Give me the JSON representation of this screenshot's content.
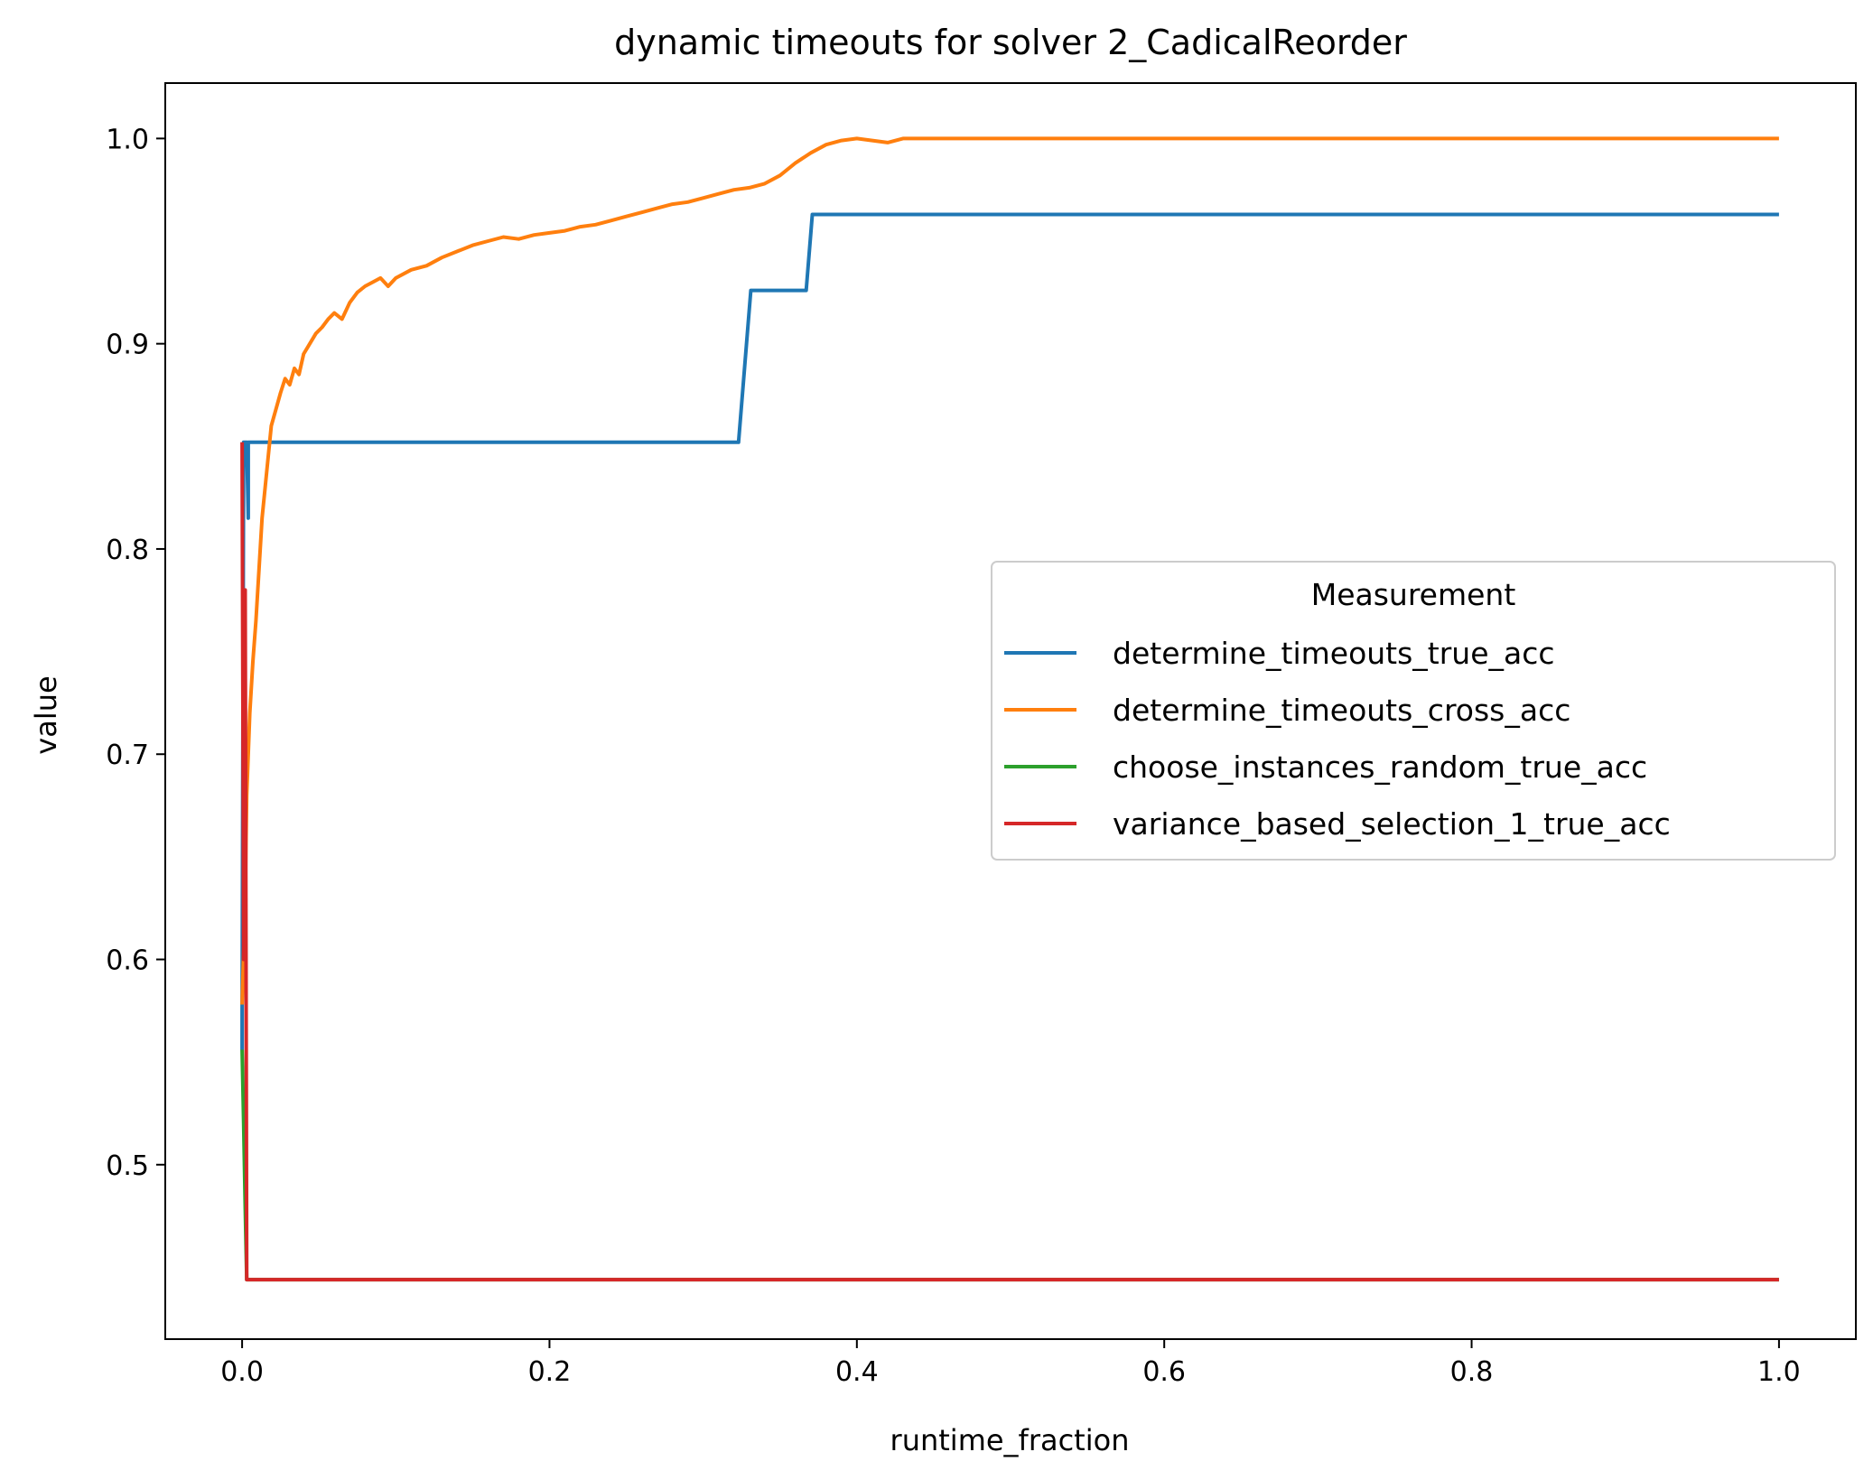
{
  "chart_data": {
    "type": "line",
    "title": "dynamic timeouts for solver 2_CadicalReorder",
    "xlabel": "runtime_fraction",
    "ylabel": "value",
    "xlim": [
      -0.05,
      1.05
    ],
    "ylim": [
      0.415,
      1.027
    ],
    "xticks": [
      0.0,
      0.2,
      0.4,
      0.6,
      0.8,
      1.0
    ],
    "xtick_labels": [
      "0.0",
      "0.2",
      "0.4",
      "0.6",
      "0.8",
      "1.0"
    ],
    "yticks": [
      0.5,
      0.6,
      0.7,
      0.8,
      0.9,
      1.0
    ],
    "ytick_labels": [
      "0.5",
      "0.6",
      "0.7",
      "0.8",
      "0.9",
      "1.0"
    ],
    "legend": {
      "title": "Measurement",
      "position": "center-right"
    },
    "series": [
      {
        "name": "determine_timeouts_true_acc",
        "color": "#1f77b4",
        "points": [
          [
            0.0,
            0.556
          ],
          [
            0.0,
            0.576
          ],
          [
            0.001,
            0.852
          ],
          [
            0.003,
            0.852
          ],
          [
            0.004,
            0.815
          ],
          [
            0.004,
            0.852
          ],
          [
            0.32,
            0.852
          ],
          [
            0.323,
            0.852
          ],
          [
            0.327,
            0.889
          ],
          [
            0.331,
            0.926
          ],
          [
            0.367,
            0.926
          ],
          [
            0.371,
            0.963
          ],
          [
            1.0,
            0.963
          ]
        ]
      },
      {
        "name": "determine_timeouts_cross_acc",
        "color": "#ff7f0e",
        "points": [
          [
            0.0,
            0.578
          ],
          [
            0.002,
            0.63
          ],
          [
            0.003,
            0.68
          ],
          [
            0.005,
            0.72
          ],
          [
            0.007,
            0.745
          ],
          [
            0.009,
            0.765
          ],
          [
            0.011,
            0.79
          ],
          [
            0.013,
            0.815
          ],
          [
            0.015,
            0.83
          ],
          [
            0.017,
            0.845
          ],
          [
            0.019,
            0.86
          ],
          [
            0.022,
            0.868
          ],
          [
            0.025,
            0.876
          ],
          [
            0.028,
            0.883
          ],
          [
            0.031,
            0.88
          ],
          [
            0.034,
            0.888
          ],
          [
            0.037,
            0.885
          ],
          [
            0.04,
            0.895
          ],
          [
            0.044,
            0.9
          ],
          [
            0.048,
            0.905
          ],
          [
            0.052,
            0.908
          ],
          [
            0.056,
            0.912
          ],
          [
            0.06,
            0.915
          ],
          [
            0.065,
            0.912
          ],
          [
            0.07,
            0.92
          ],
          [
            0.075,
            0.925
          ],
          [
            0.08,
            0.928
          ],
          [
            0.085,
            0.93
          ],
          [
            0.09,
            0.932
          ],
          [
            0.095,
            0.928
          ],
          [
            0.1,
            0.932
          ],
          [
            0.11,
            0.936
          ],
          [
            0.12,
            0.938
          ],
          [
            0.13,
            0.942
          ],
          [
            0.14,
            0.945
          ],
          [
            0.15,
            0.948
          ],
          [
            0.16,
            0.95
          ],
          [
            0.17,
            0.952
          ],
          [
            0.18,
            0.951
          ],
          [
            0.19,
            0.953
          ],
          [
            0.2,
            0.954
          ],
          [
            0.21,
            0.955
          ],
          [
            0.22,
            0.957
          ],
          [
            0.23,
            0.958
          ],
          [
            0.24,
            0.96
          ],
          [
            0.25,
            0.962
          ],
          [
            0.26,
            0.964
          ],
          [
            0.27,
            0.966
          ],
          [
            0.28,
            0.968
          ],
          [
            0.29,
            0.969
          ],
          [
            0.3,
            0.971
          ],
          [
            0.31,
            0.973
          ],
          [
            0.32,
            0.975
          ],
          [
            0.33,
            0.976
          ],
          [
            0.34,
            0.978
          ],
          [
            0.35,
            0.982
          ],
          [
            0.36,
            0.988
          ],
          [
            0.37,
            0.993
          ],
          [
            0.38,
            0.997
          ],
          [
            0.39,
            0.999
          ],
          [
            0.4,
            1.0
          ],
          [
            0.41,
            0.999
          ],
          [
            0.42,
            0.998
          ],
          [
            0.43,
            1.0
          ],
          [
            1.0,
            1.0
          ]
        ]
      },
      {
        "name": "choose_instances_random_true_acc",
        "color": "#2ca02c",
        "points": [
          [
            0.0,
            0.556
          ],
          [
            0.001,
            0.52
          ],
          [
            0.002,
            0.48
          ],
          [
            0.003,
            0.444
          ],
          [
            1.0,
            0.444
          ]
        ]
      },
      {
        "name": "variance_based_selection_1_true_acc",
        "color": "#d62728",
        "points": [
          [
            0.0,
            0.852
          ],
          [
            0.001,
            0.6
          ],
          [
            0.002,
            0.78
          ],
          [
            0.0025,
            0.63
          ],
          [
            0.003,
            0.444
          ],
          [
            1.0,
            0.444
          ]
        ]
      }
    ]
  }
}
